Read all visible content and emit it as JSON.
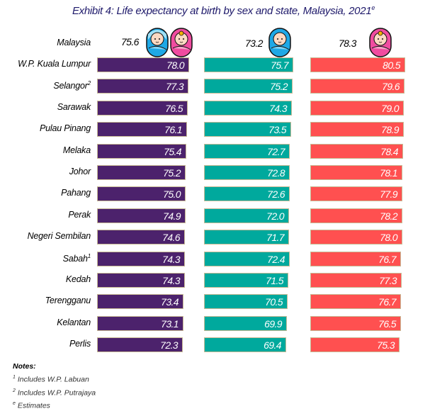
{
  "title": "Exhibit 4: Life expectancy at birth by sex and state, Malaysia, 2021",
  "title_sup": "e",
  "colors": {
    "total": "#4c226c",
    "male": "#00a99d",
    "female": "#ff5050",
    "title": "#1f1a6b"
  },
  "national": {
    "label": "Malaysia",
    "total": "75.6",
    "male": "73.2",
    "female": "78.3"
  },
  "icons": {
    "total": "baby-boy-and-girl-icon",
    "male": "baby-boy-icon",
    "female": "baby-girl-icon"
  },
  "chart_data": {
    "type": "bar",
    "orientation": "horizontal",
    "title": "Exhibit 4: Life expectancy at birth by sex and state, Malaysia, 2021e",
    "categories": [
      "W.P. Kuala Lumpur",
      "Selangor",
      "Sarawak",
      "Pulau Pinang",
      "Melaka",
      "Johor",
      "Pahang",
      "Perak",
      "Negeri Sembilan",
      "Sabah",
      "Kedah",
      "Terengganu",
      "Kelantan",
      "Perlis"
    ],
    "category_sups": [
      "",
      "2",
      "",
      "",
      "",
      "",
      "",
      "",
      "",
      "1",
      "",
      "",
      "",
      ""
    ],
    "series": [
      {
        "name": "Total",
        "color": "#4c226c",
        "values": [
          78.0,
          77.3,
          76.5,
          76.1,
          75.4,
          75.2,
          75.0,
          74.9,
          74.6,
          74.3,
          74.3,
          73.4,
          73.1,
          72.3
        ]
      },
      {
        "name": "Male",
        "color": "#00a99d",
        "values": [
          75.7,
          75.2,
          74.3,
          73.5,
          72.7,
          72.8,
          72.6,
          72.0,
          71.7,
          72.4,
          71.5,
          70.5,
          69.9,
          69.4
        ]
      },
      {
        "name": "Female",
        "color": "#ff5050",
        "values": [
          80.5,
          79.6,
          79.0,
          78.9,
          78.4,
          78.1,
          77.9,
          78.2,
          78.0,
          76.7,
          77.3,
          76.7,
          76.5,
          75.3
        ]
      }
    ],
    "national": {
      "Total": 75.6,
      "Male": 73.2,
      "Female": 78.3
    },
    "xlim": [
      0,
      80.5
    ]
  },
  "notes": {
    "heading": "Notes:",
    "items": [
      {
        "sup": "1",
        "text": "Includes W.P. Labuan"
      },
      {
        "sup": "2",
        "text": "Includes W.P. Putrajaya"
      },
      {
        "sup": "e",
        "text": "Estimates"
      }
    ]
  }
}
